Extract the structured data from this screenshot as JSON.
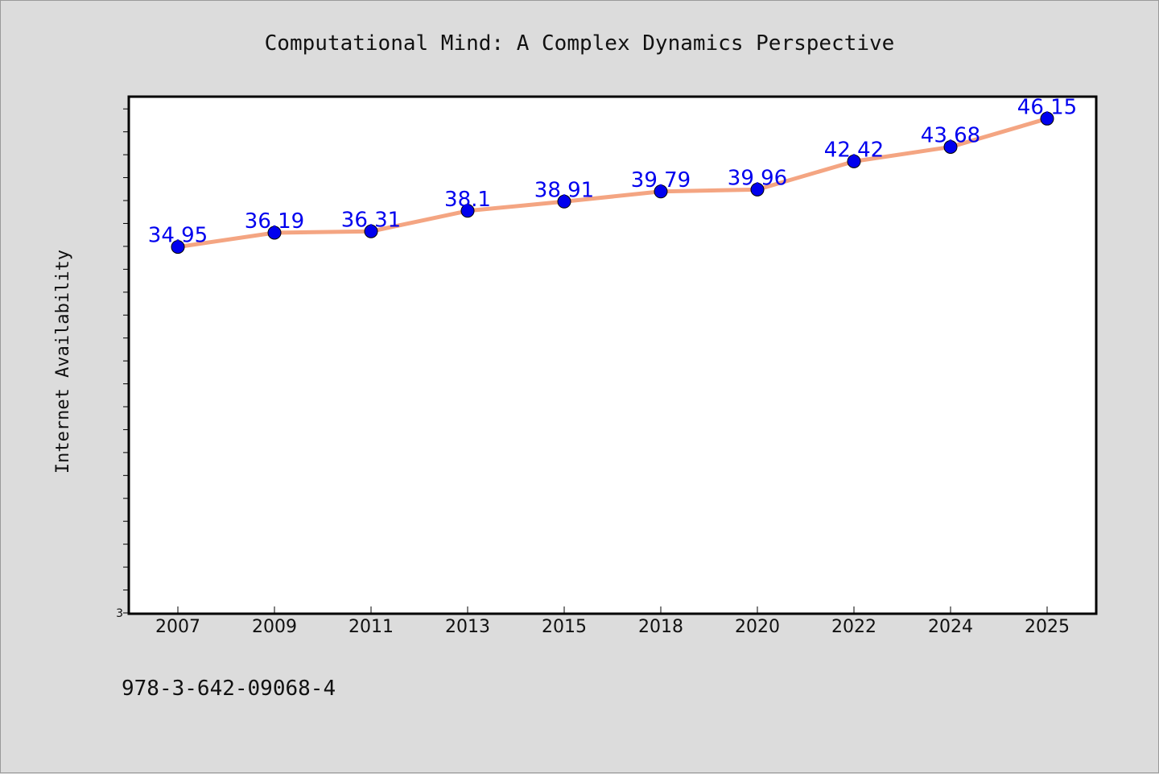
{
  "chart_data": {
    "type": "line",
    "title": "Computational Mind: A Complex Dynamics Perspective",
    "xlabel": "",
    "ylabel": "Internet Availability",
    "categories": [
      "2007",
      "2009",
      "2011",
      "2013",
      "2015",
      "2018",
      "2020",
      "2022",
      "2024",
      "2025"
    ],
    "series": [
      {
        "values": [
          34.95,
          36.19,
          36.31,
          38.1,
          38.91,
          39.79,
          39.96,
          42.42,
          43.68,
          46.15
        ],
        "data_labels": [
          "34.95",
          "36.19",
          "36.31",
          "38.1",
          "38.91",
          "39.79",
          "39.96",
          "42.42",
          "43.68",
          "46.15"
        ],
        "line_color": "#f4a582",
        "marker_color": "#0000ee",
        "label_color": "#0000ee"
      }
    ],
    "ylim": [
      3,
      48
    ],
    "yticks_labeled": [
      "3"
    ],
    "grid": false,
    "legend": "none"
  },
  "footer": {
    "isbn": "978-3-642-09068-4"
  },
  "colors": {
    "background": "#dcdcdc",
    "plot_background": "#ffffff",
    "axis": "#000000"
  }
}
